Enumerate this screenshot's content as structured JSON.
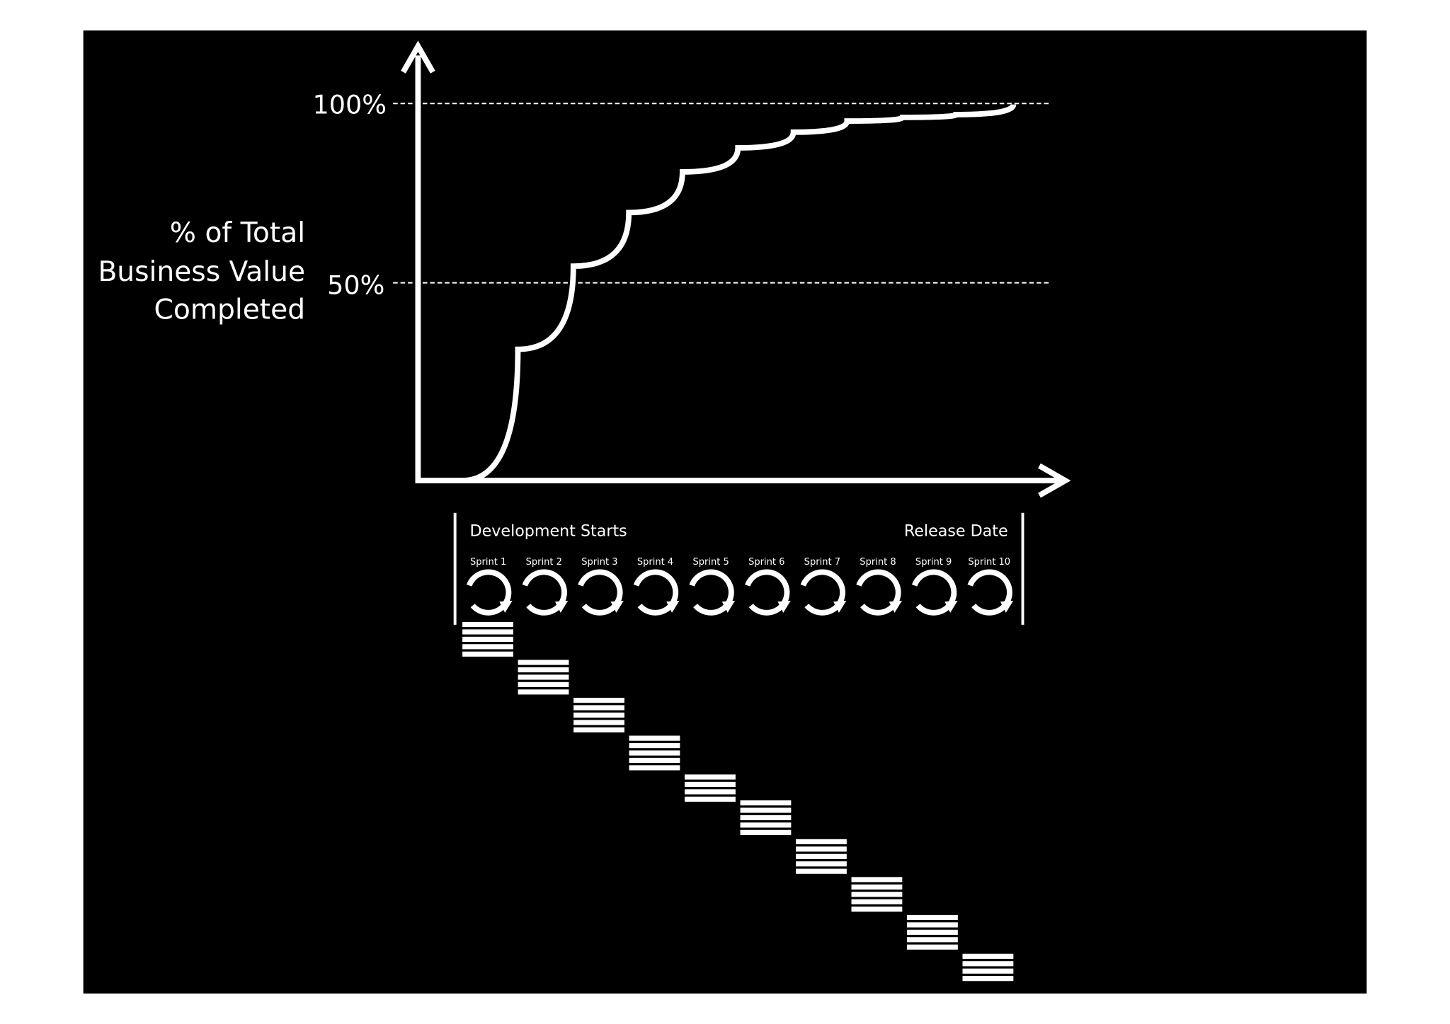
{
  "axis": {
    "y_label": [
      "% of Total",
      "Business Value",
      "Completed"
    ],
    "ticks": [
      "100%",
      "50%"
    ]
  },
  "timeline": {
    "start": "Development Starts",
    "end": "Release Date",
    "sprints": [
      "Sprint 1",
      "Sprint 2",
      "Sprint 3",
      "Sprint 4",
      "Sprint 5",
      "Sprint 6",
      "Sprint 7",
      "Sprint 8",
      "Sprint 9",
      "Sprint 10"
    ]
  }
}
